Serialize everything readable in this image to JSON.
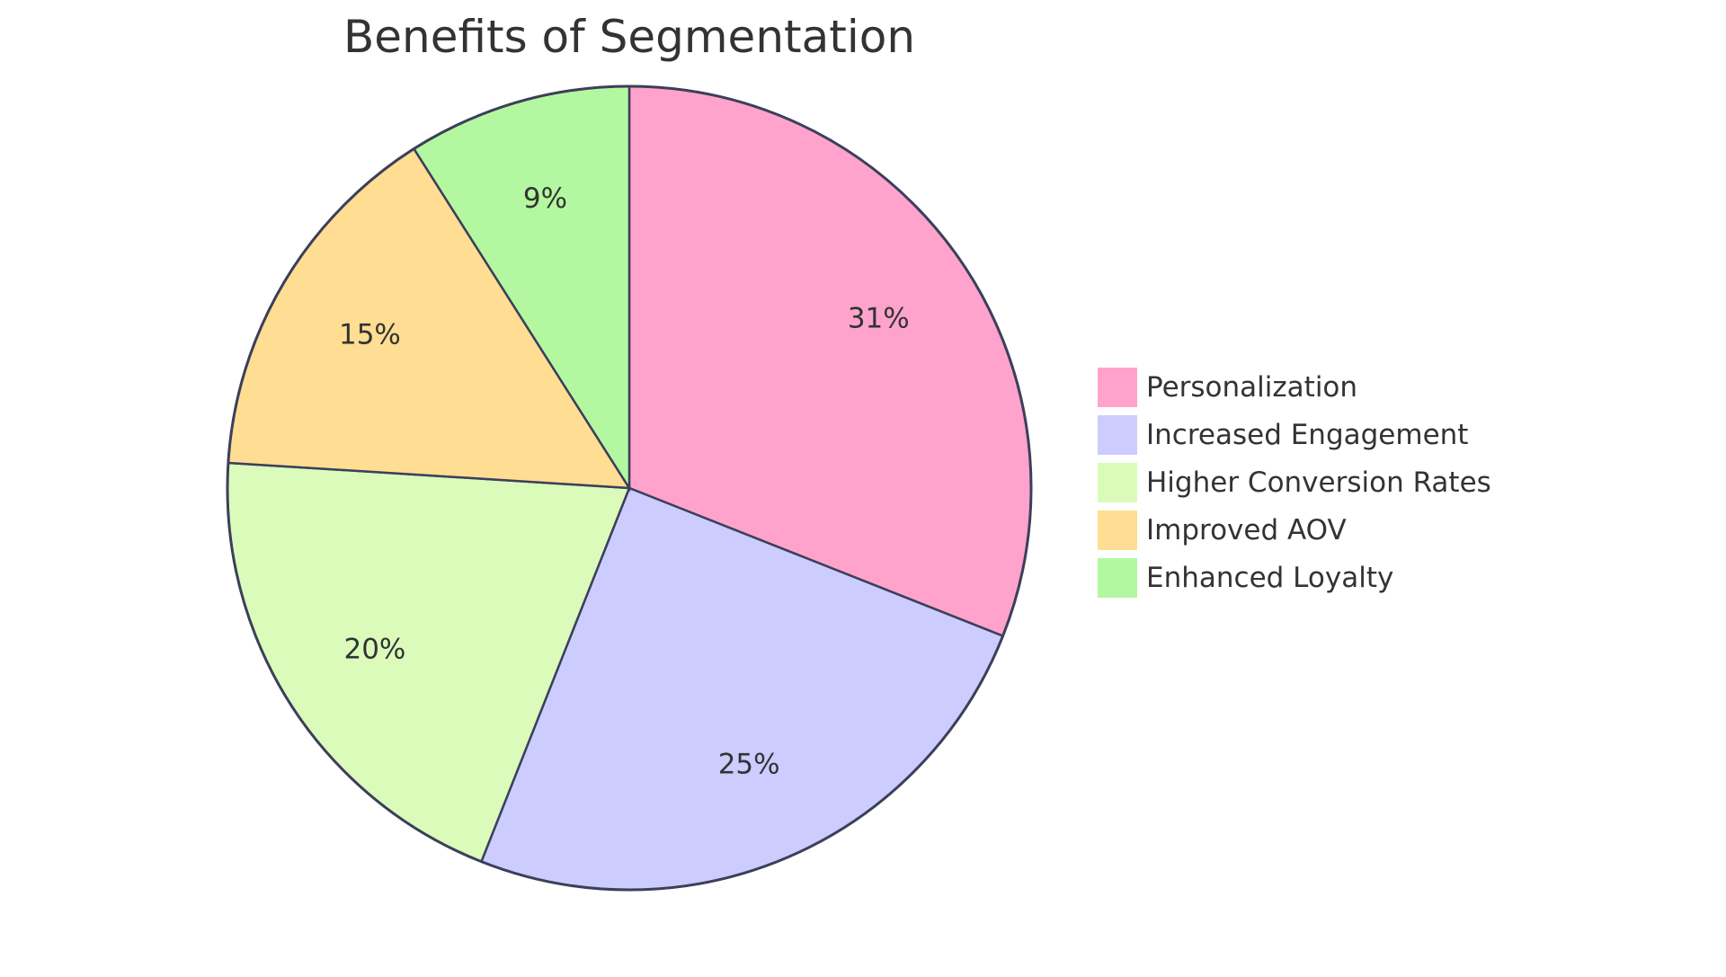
{
  "chart_data": {
    "type": "pie",
    "title": "Benefits of Segmentation",
    "slices": [
      {
        "name": "Personalization",
        "value": 31,
        "label": "31%",
        "color": "#ffa3cc"
      },
      {
        "name": "Increased Engagement",
        "value": 25,
        "label": "25%",
        "color": "#ccccff"
      },
      {
        "name": "Higher Conversion Rates",
        "value": 20,
        "label": "20%",
        "color": "#dbfbbb"
      },
      {
        "name": "Improved AOV",
        "value": 15,
        "label": "15%",
        "color": "#ffdd93"
      },
      {
        "name": "Enhanced Loyalty",
        "value": 9,
        "label": "9%",
        "color": "#b3f8a0"
      }
    ],
    "start_angle": "12 o'clock",
    "direction": "clockwise",
    "legend": "right"
  }
}
